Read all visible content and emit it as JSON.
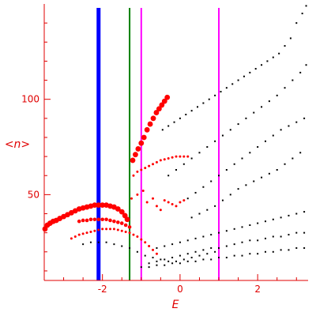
{
  "chart_data": {
    "type": "scatter",
    "title": "",
    "xlabel": "E",
    "ylabel": "<n>",
    "xlim": [
      -3.5,
      3.3
    ],
    "ylim": [
      5,
      150
    ],
    "xticks": [
      -2,
      0,
      2
    ],
    "yticks": [
      50,
      100
    ],
    "grid": false,
    "colors": {
      "axis": "#e00000",
      "blue_line": "#0000ff",
      "green_line": "#008000",
      "magenta_line": "#ff00ff",
      "red_points": "#ff0000",
      "black_points": "#000000"
    },
    "vertical_lines": [
      {
        "x": -2.1,
        "color": "#0000ff",
        "width": "thick"
      },
      {
        "x": -1.3,
        "color": "#008000",
        "width": "thin"
      },
      {
        "x": -1.0,
        "color": "#ff00ff",
        "width": "thin"
      },
      {
        "x": 1.0,
        "color": "#ff00ff",
        "width": "thin"
      }
    ],
    "red_series": [
      {
        "x": [
          -3.48,
          -3.42,
          -3.35,
          -3.27,
          -3.19,
          -3.1,
          -3.0,
          -2.9,
          -2.8,
          -2.7,
          -2.6,
          -2.5,
          -2.4,
          -2.3,
          -2.2,
          -2.1,
          -2.0,
          -1.9,
          -1.8,
          -1.7,
          -1.6,
          -1.5,
          -1.42,
          -1.36
        ],
        "y": [
          32,
          34,
          35,
          36,
          36.5,
          37.5,
          38.5,
          39.5,
          40.5,
          41.5,
          42.5,
          43,
          43.5,
          44,
          44.5,
          44.5,
          44.5,
          44.5,
          44,
          43.5,
          42.5,
          41,
          39,
          37
        ],
        "size": "large"
      },
      {
        "x": [
          -1.22,
          -1.15,
          -1.08,
          -1.0,
          -0.93,
          -0.85,
          -0.77,
          -0.69,
          -0.61,
          -0.54,
          -0.47,
          -0.4,
          -0.33
        ],
        "y": [
          68,
          71,
          74,
          77,
          80,
          84,
          87,
          90,
          93,
          95,
          97,
          99,
          101
        ],
        "size": "large"
      },
      {
        "x": [
          -2.6,
          -2.5,
          -2.4,
          -2.3,
          -2.2,
          -2.1,
          -2.0,
          -1.9,
          -1.8,
          -1.7,
          -1.6,
          -1.5,
          -1.4,
          -1.3
        ],
        "y": [
          36,
          36.5,
          36.5,
          37,
          37,
          37,
          37,
          37,
          36.5,
          36,
          35.5,
          35,
          34,
          33
        ],
        "size": "medium"
      },
      {
        "x": [
          -2.8,
          -2.7,
          -2.6,
          -2.5,
          -2.4,
          -2.3,
          -2.2,
          -2.1,
          -2.0,
          -1.9,
          -1.8,
          -1.7,
          -1.6,
          -1.5,
          -1.4,
          -1.3,
          -1.2,
          -1.1,
          -1.0,
          -0.9,
          -0.8,
          -0.7,
          -0.6
        ],
        "y": [
          27,
          28,
          29,
          29.5,
          30,
          30.5,
          31,
          31.5,
          32,
          32,
          32,
          32,
          31.5,
          31,
          30.5,
          30,
          29,
          28,
          26.5,
          25,
          23,
          21,
          19
        ],
        "size": "small"
      },
      {
        "x": [
          -1.2,
          -1.1,
          -1.0,
          -0.9,
          -0.8,
          -0.7,
          -0.6,
          -0.5,
          -0.4,
          -0.3,
          -0.2,
          -0.1,
          0.0,
          0.1,
          0.2
        ],
        "y": [
          60,
          62,
          63,
          64,
          65,
          66,
          67,
          68,
          68.5,
          69,
          69.5,
          70,
          70,
          70,
          70
        ],
        "size": "small"
      },
      {
        "x": [
          -1.25,
          -1.1,
          -0.95,
          -0.85,
          -0.7,
          -0.6,
          -0.5,
          -0.4,
          -0.3,
          -0.2,
          -0.1,
          0.0,
          0.1
        ],
        "y": [
          48,
          50,
          52,
          46,
          48,
          44,
          42,
          47,
          46,
          45,
          44,
          46,
          47
        ],
        "size": "small"
      }
    ],
    "black_series": [
      {
        "x": [
          -0.45,
          -0.3,
          -0.15,
          0.0,
          0.15,
          0.3,
          0.45,
          0.6,
          0.75,
          0.9,
          1.05,
          1.2,
          1.35,
          1.5,
          1.65,
          1.8,
          1.95,
          2.1,
          2.25,
          2.4,
          2.55,
          2.7,
          2.85,
          3.0,
          3.15,
          3.25
        ],
        "y": [
          84,
          86,
          88,
          90,
          92,
          94,
          96,
          98,
          100,
          102,
          104,
          106,
          108,
          110,
          112,
          114,
          116,
          118,
          120,
          122,
          124,
          128,
          132,
          140,
          145,
          149
        ]
      },
      {
        "x": [
          -0.3,
          -0.1,
          0.1,
          0.3,
          0.5,
          0.7,
          0.9,
          1.1,
          1.3,
          1.5,
          1.7,
          1.9,
          2.1,
          2.3,
          2.5,
          2.7,
          2.9,
          3.1,
          3.25
        ],
        "y": [
          60,
          63,
          66,
          69,
          72,
          75,
          78,
          81,
          84,
          87,
          90,
          93,
          96,
          99,
          102,
          106,
          110,
          114,
          118
        ]
      },
      {
        "x": [
          0.2,
          0.4,
          0.6,
          0.8,
          1.0,
          1.2,
          1.4,
          1.6,
          1.8,
          2.0,
          2.2,
          2.4,
          2.6,
          2.8,
          3.0,
          3.2
        ],
        "y": [
          48,
          51,
          54,
          57,
          60,
          63,
          66,
          69,
          72,
          75,
          78,
          81,
          84,
          86,
          88,
          90
        ]
      },
      {
        "x": [
          0.3,
          0.5,
          0.7,
          0.9,
          1.1,
          1.3,
          1.5,
          1.7,
          1.9,
          2.1,
          2.3,
          2.5,
          2.7,
          2.9,
          3.1
        ],
        "y": [
          38,
          40,
          42,
          44,
          47,
          50,
          53,
          55,
          57,
          59,
          61,
          63,
          66,
          69,
          72
        ]
      },
      {
        "x": [
          -0.6,
          -0.4,
          -0.2,
          0.0,
          0.2,
          0.4,
          0.6,
          0.8,
          1.0,
          1.2,
          1.4,
          1.6,
          1.8,
          2.0,
          2.2,
          2.4,
          2.6,
          2.8,
          3.0,
          3.2
        ],
        "y": [
          22,
          23,
          24,
          25,
          26,
          27,
          28,
          29,
          30,
          31,
          32,
          33,
          34,
          35,
          36,
          37,
          38,
          39,
          40,
          41
        ]
      },
      {
        "x": [
          -0.8,
          -0.6,
          -0.4,
          -0.2,
          0.0,
          0.2,
          0.4,
          0.6,
          0.8,
          1.0,
          1.2,
          1.4,
          1.6,
          1.8,
          2.0,
          2.2,
          2.4,
          2.6,
          2.8,
          3.0,
          3.2
        ],
        "y": [
          14,
          15,
          16,
          17,
          18,
          19,
          20,
          21,
          22,
          22,
          23,
          24,
          25,
          26,
          26,
          27,
          28,
          28,
          29,
          30,
          30
        ]
      },
      {
        "x": [
          -1.0,
          -0.8,
          -0.6,
          -0.4,
          -0.2,
          0.0,
          0.2,
          0.4,
          0.6,
          0.8,
          1.0,
          1.2,
          1.4,
          1.6,
          1.8,
          2.0,
          2.2,
          2.4,
          2.6,
          2.8,
          3.0,
          3.2
        ],
        "y": [
          12,
          12,
          13,
          13,
          14,
          14,
          15,
          15,
          16,
          16,
          17,
          17,
          18,
          18,
          19,
          19,
          20,
          20,
          21,
          21,
          22,
          22
        ]
      },
      {
        "x": [
          -2.5,
          -2.3,
          -2.1,
          -1.9,
          -1.7,
          -1.5,
          -1.3,
          -1.1,
          -0.9,
          -0.7,
          -0.5,
          -0.3,
          -0.1,
          0.1,
          0.3,
          0.5,
          0.7,
          0.9
        ],
        "y": [
          24,
          25,
          25,
          25,
          24,
          23,
          22,
          20,
          18,
          17,
          16,
          15,
          15,
          16,
          17,
          18,
          19,
          20
        ]
      }
    ]
  }
}
